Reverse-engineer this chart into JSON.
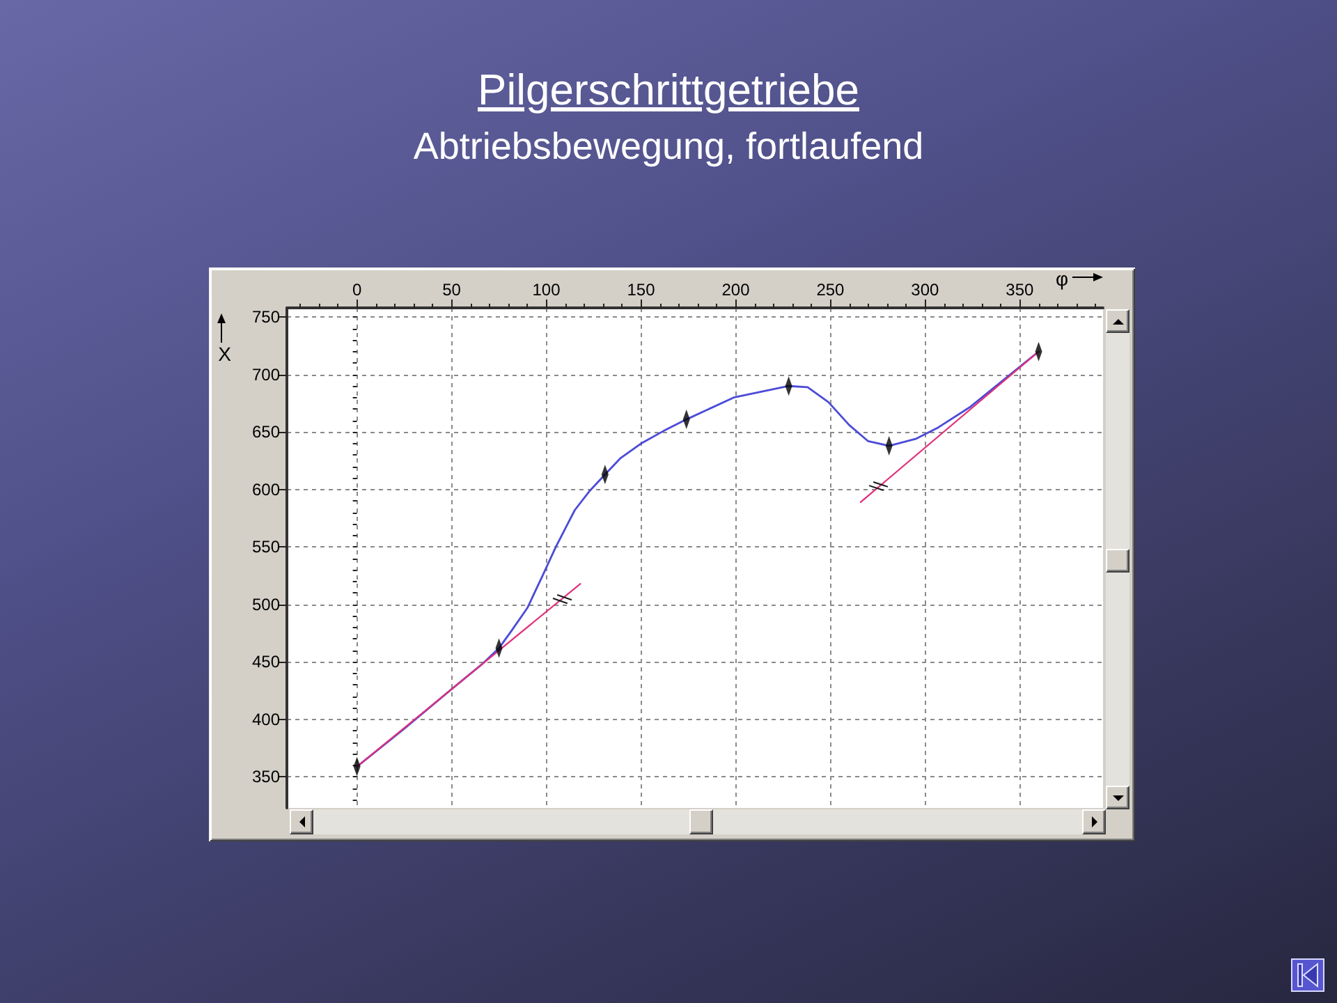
{
  "chart_data": {
    "type": "line",
    "title": "Pilgerschrittgetriebe",
    "subtitle": "Abtriebsbewegung, fortlaufend",
    "xlabel": "φ",
    "ylabel": "X",
    "xlim": [
      -37,
      394
    ],
    "ylim": [
      323,
      758
    ],
    "xticks": [
      0,
      50,
      100,
      150,
      200,
      250,
      300,
      350
    ],
    "yticks": [
      350,
      400,
      450,
      500,
      550,
      600,
      650,
      700,
      750
    ],
    "grid": true,
    "series": [
      {
        "color": "#4b4bd8",
        "marker": "none",
        "x": [
          0,
          25,
          49,
          66,
          75,
          82,
          90,
          98,
          105,
          110,
          115,
          123,
          131,
          139,
          150,
          162,
          174,
          199,
          228,
          238,
          249,
          260,
          270,
          281,
          295,
          307,
          324,
          339,
          360
        ],
        "values": [
          359,
          392,
          425,
          448,
          462,
          478,
          497,
          525,
          550,
          566,
          582,
          599,
          613,
          627,
          640,
          651,
          661,
          680,
          690,
          689,
          676,
          656,
          642,
          638,
          644,
          654,
          672,
          692,
          720
        ]
      },
      {
        "color": "#e0307a",
        "marker": "none",
        "x": [
          0,
          118
        ],
        "values": [
          359,
          518
        ]
      },
      {
        "color": "#e0307a",
        "marker": "none",
        "x": [
          266,
          360
        ],
        "values": [
          589,
          720
        ]
      },
      {
        "type": "scatter",
        "marker": "diamond",
        "color": "#000000",
        "x": [
          0,
          75,
          131,
          174,
          228,
          281,
          360
        ],
        "values": [
          359,
          462,
          613,
          661,
          690,
          638,
          720
        ]
      }
    ]
  }
}
